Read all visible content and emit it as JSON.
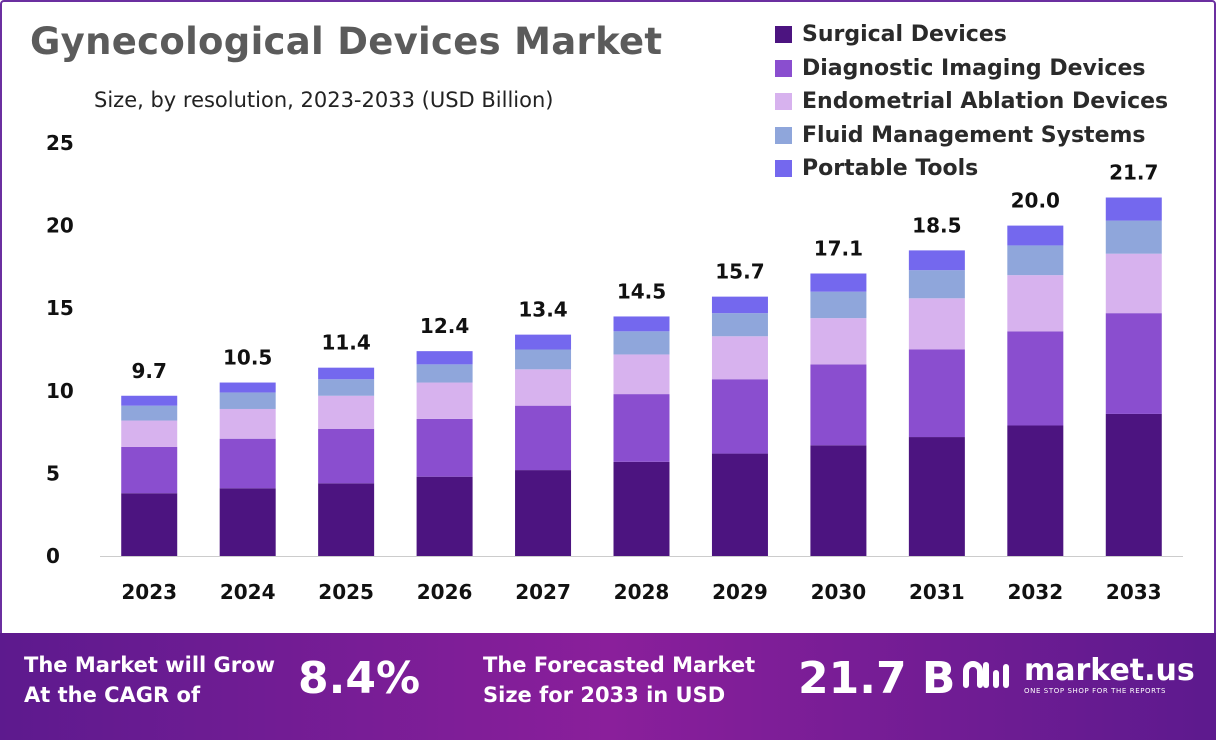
{
  "header": {
    "title": "Gynecological Devices Market",
    "subtitle": "Size, by resolution, 2023-2033 (USD Billion)"
  },
  "chart_data": {
    "type": "bar",
    "stacked": true,
    "categories": [
      "2023",
      "2024",
      "2025",
      "2026",
      "2027",
      "2028",
      "2029",
      "2030",
      "2031",
      "2032",
      "2033"
    ],
    "series": [
      {
        "name": "Surgical Devices",
        "color": "#4c1480",
        "values": [
          3.8,
          4.1,
          4.4,
          4.8,
          5.2,
          5.7,
          6.2,
          6.7,
          7.2,
          7.9,
          8.6
        ]
      },
      {
        "name": "Diagnostic Imaging Devices",
        "color": "#8a4ecf",
        "values": [
          2.8,
          3.0,
          3.3,
          3.5,
          3.9,
          4.1,
          4.5,
          4.9,
          5.3,
          5.7,
          6.1
        ]
      },
      {
        "name": "Endometrial Ablation Devices",
        "color": "#d7b2ee",
        "values": [
          1.6,
          1.8,
          2.0,
          2.2,
          2.2,
          2.4,
          2.6,
          2.8,
          3.1,
          3.4,
          3.6
        ]
      },
      {
        "name": "Fluid Management Systems",
        "color": "#8fa6db",
        "values": [
          0.9,
          1.0,
          1.0,
          1.1,
          1.2,
          1.4,
          1.4,
          1.6,
          1.7,
          1.8,
          2.0
        ]
      },
      {
        "name": "Portable Tools",
        "color": "#7468ee",
        "values": [
          0.6,
          0.6,
          0.7,
          0.8,
          0.9,
          0.9,
          1.0,
          1.1,
          1.2,
          1.2,
          1.4
        ]
      }
    ],
    "totals": [
      "9.7",
      "10.5",
      "11.4",
      "12.4",
      "13.4",
      "14.5",
      "15.7",
      "17.1",
      "18.5",
      "20.0",
      "21.7"
    ],
    "ylim": [
      0,
      25
    ],
    "yticks": [
      "0",
      "5",
      "10",
      "15",
      "20",
      "25"
    ],
    "xlabel": "",
    "ylabel": "",
    "grid": false,
    "legend_position": "top-right"
  },
  "banner": {
    "cagr_line1": "The Market will Grow",
    "cagr_line2": "At the CAGR of",
    "cagr_value": "8.4%",
    "forecast_line1": "The Forecasted Market",
    "forecast_line2": "Size for 2033 in USD",
    "forecast_value": "21.7 B",
    "brand_name": "market.us",
    "brand_tagline": "ONE STOP SHOP FOR THE REPORTS"
  }
}
